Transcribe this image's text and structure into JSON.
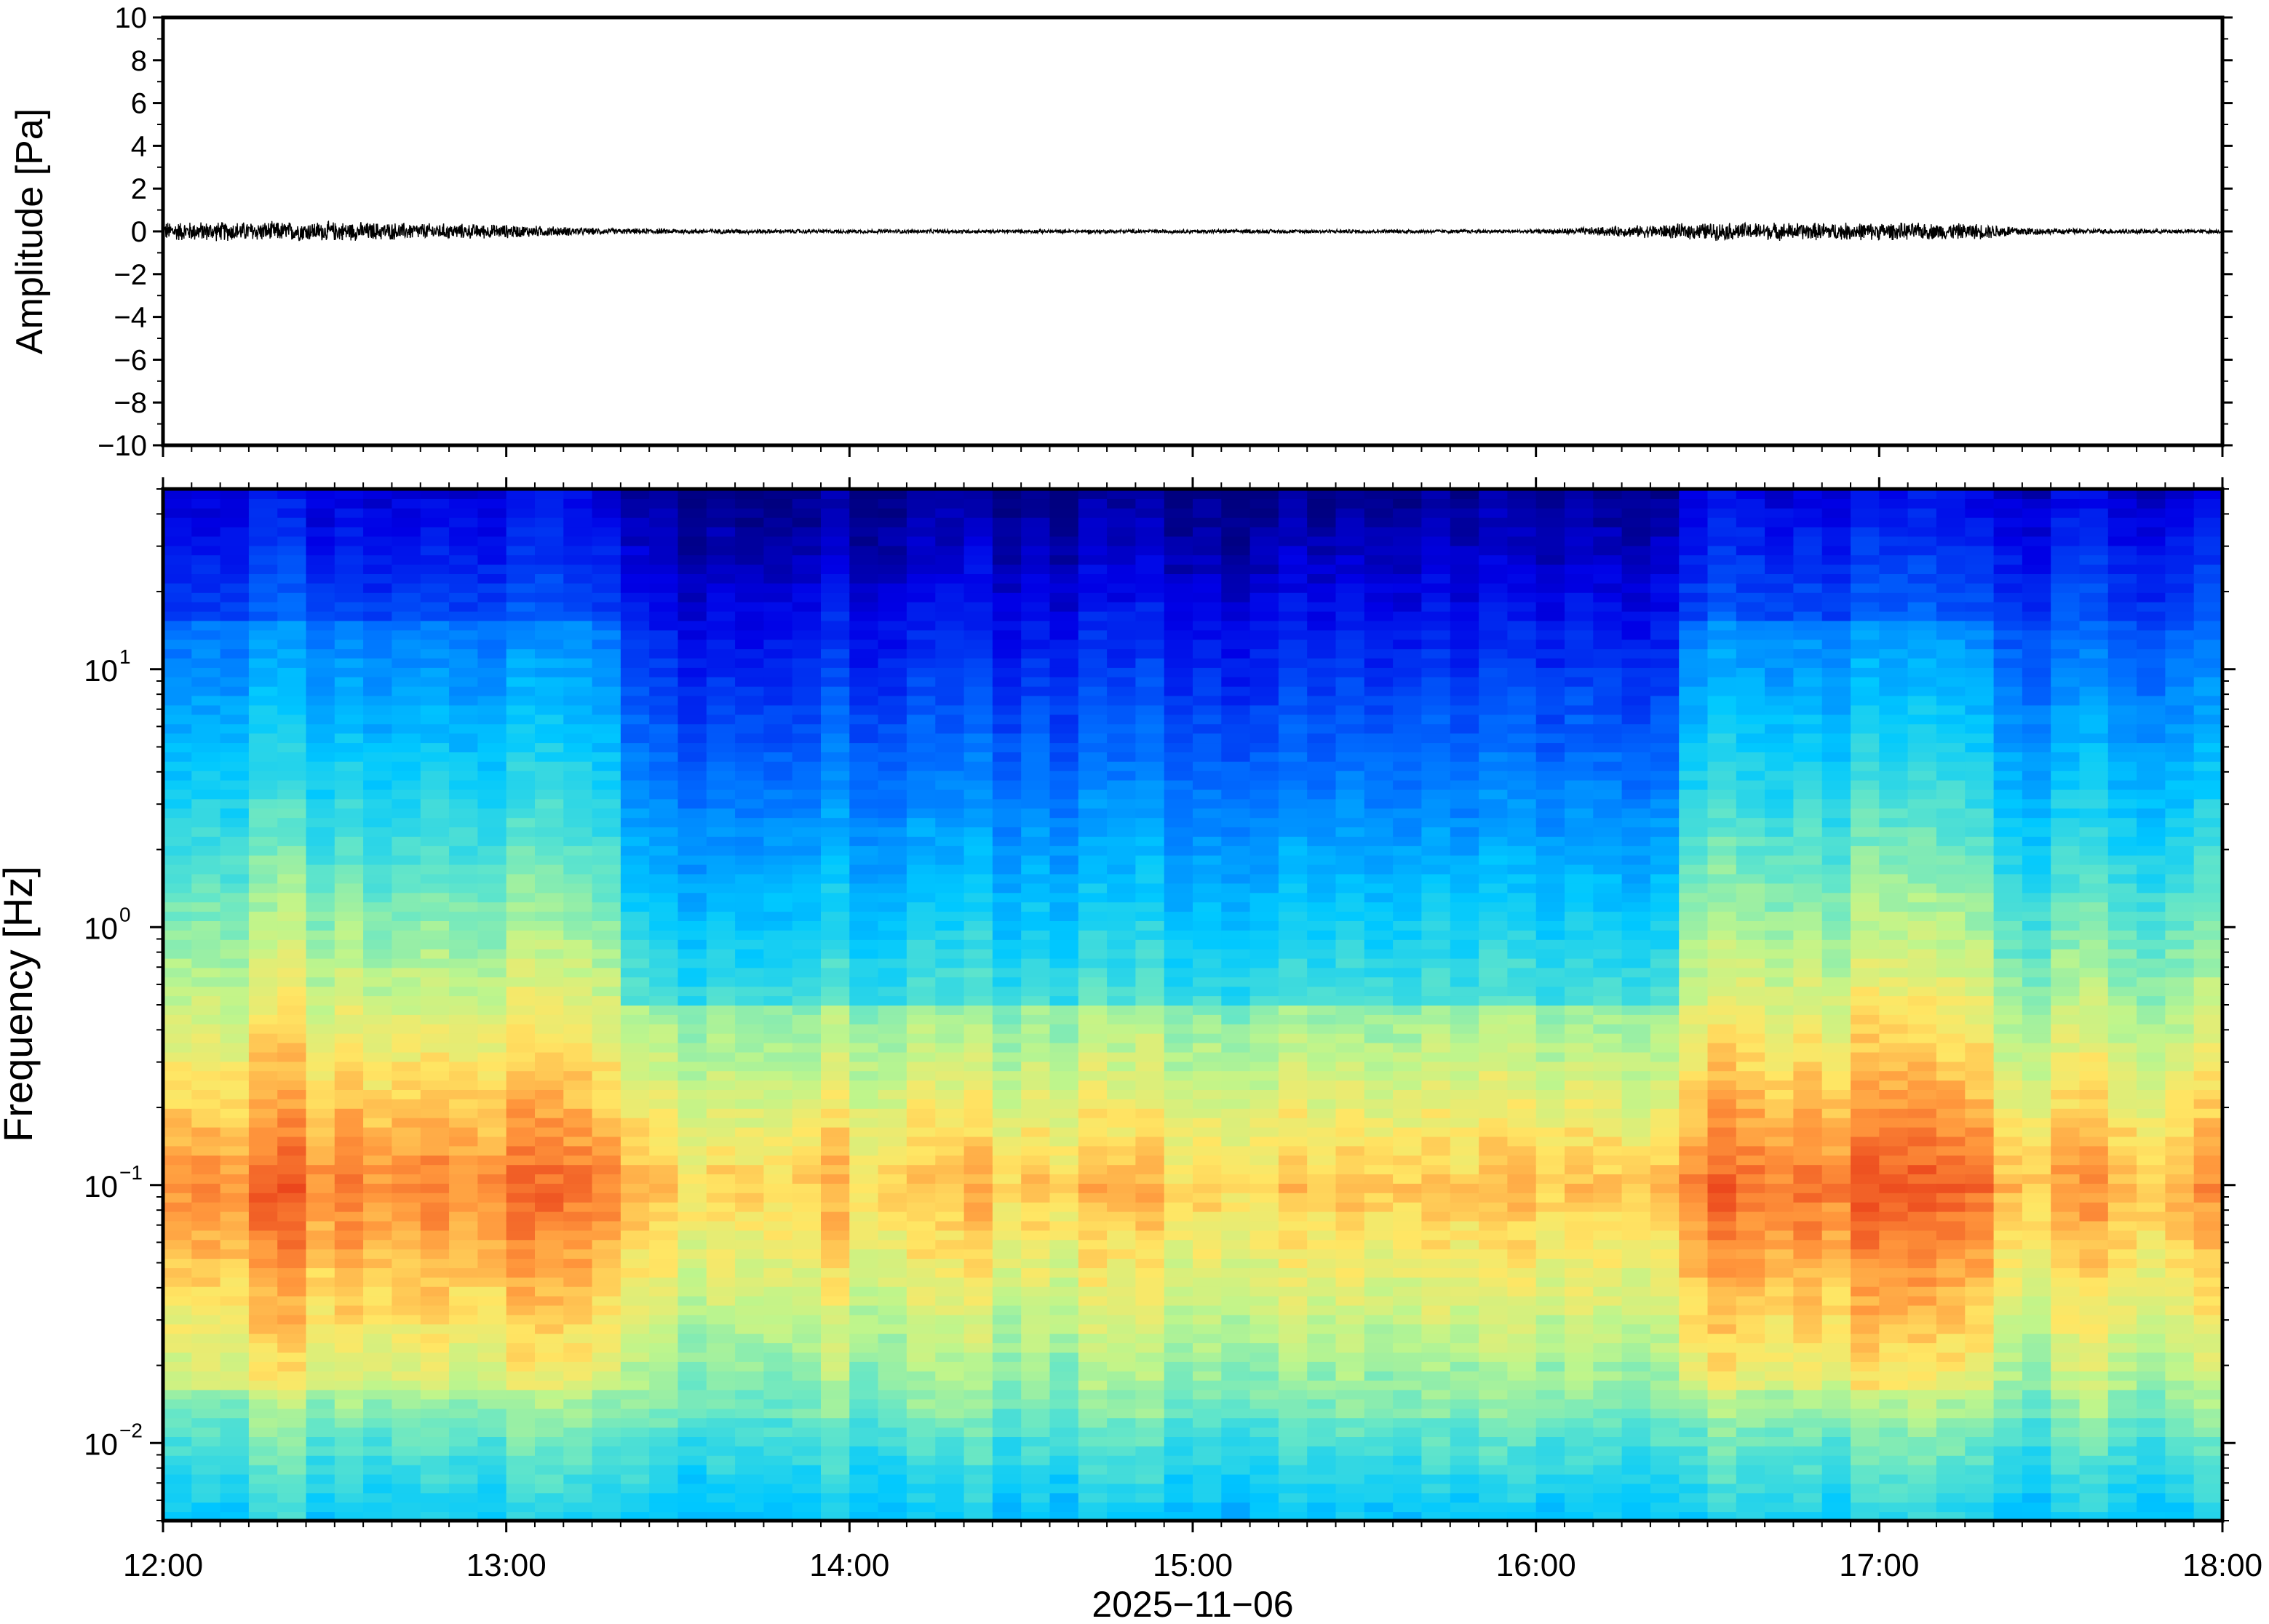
{
  "chart_data": [
    {
      "type": "line",
      "title": "",
      "xlabel": "",
      "ylabel": "Amplitude [Pa]",
      "ylim": [
        -10,
        10
      ],
      "yticks": [
        {
          "value": 10,
          "label": "10"
        },
        {
          "value": 8,
          "label": "8"
        },
        {
          "value": 6,
          "label": "6"
        },
        {
          "value": 4,
          "label": "4"
        },
        {
          "value": 2,
          "label": "2"
        },
        {
          "value": 0,
          "label": "0"
        },
        {
          "value": -2,
          "label": "−2"
        },
        {
          "value": -4,
          "label": "−4"
        },
        {
          "value": -6,
          "label": "−6"
        },
        {
          "value": -8,
          "label": "−8"
        },
        {
          "value": -10,
          "label": "−10"
        }
      ],
      "x_range": [
        "12:00",
        "18:00"
      ],
      "series_description_values": {
        "time_hours": [
          12.0,
          12.5,
          13.0,
          13.3,
          14.0,
          15.0,
          16.0,
          16.5,
          17.0,
          17.3,
          17.5,
          18.0
        ],
        "envelope_pa": [
          0.5,
          0.5,
          0.35,
          0.15,
          0.1,
          0.1,
          0.1,
          0.45,
          0.45,
          0.4,
          0.15,
          0.1
        ]
      },
      "grid": false,
      "line_color": "#000000"
    },
    {
      "type": "heatmap",
      "title": "",
      "xlabel": "2025−11−06",
      "ylabel": "Frequency [Hz]",
      "yscale": "log",
      "ylim": [
        0.005,
        50
      ],
      "yticks": [
        {
          "value": 0.01,
          "base": "10",
          "exp": "−2"
        },
        {
          "value": 0.1,
          "base": "10",
          "exp": "−1"
        },
        {
          "value": 1,
          "base": "10",
          "exp": "0"
        },
        {
          "value": 10,
          "base": "10",
          "exp": "1"
        }
      ],
      "xticks": [
        "12:00",
        "13:00",
        "14:00",
        "15:00",
        "16:00",
        "17:00",
        "18:00"
      ],
      "colormap": "jet",
      "grid": false
    }
  ]
}
